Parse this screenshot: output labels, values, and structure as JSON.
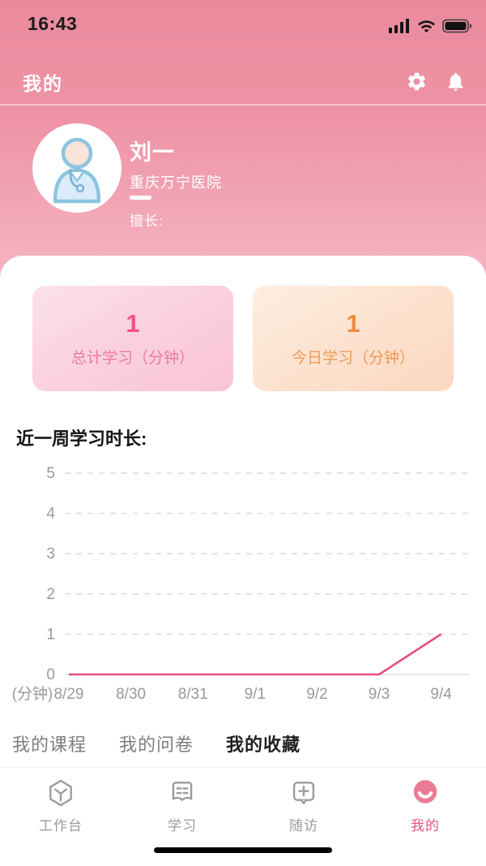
{
  "status_bar": {
    "time": "16:43"
  },
  "header": {
    "title": "我的"
  },
  "profile": {
    "name": "刘一",
    "hospital": "重庆万宁医院",
    "specialty_label": "擅长:"
  },
  "stats": [
    {
      "value": "1",
      "label": "总计学习（分钟）",
      "value_color": "#f0508b"
    },
    {
      "value": "1",
      "label": "今日学习（分钟）",
      "value_color": "#ee8c3d"
    }
  ],
  "chart_data": {
    "type": "line",
    "title": "近一周学习时长:",
    "unit_label": "(分钟)",
    "x": [
      "8/29",
      "8/30",
      "8/31",
      "9/1",
      "9/2",
      "9/3",
      "9/4"
    ],
    "values": [
      0,
      0,
      0,
      0,
      0,
      0,
      1
    ],
    "ylim": [
      0,
      5
    ],
    "yticks": [
      0,
      1,
      2,
      3,
      4,
      5
    ],
    "grid": "dashed horizontal",
    "line_color": "#e2507f",
    "axis_label_color": "#999999"
  },
  "links": [
    {
      "label": "我的课程"
    },
    {
      "label": "我的问卷"
    },
    {
      "label": "我的收藏"
    }
  ],
  "tab_bar": {
    "items": [
      {
        "label": "工作台",
        "icon": "workbench-icon",
        "active": false
      },
      {
        "label": "学习",
        "icon": "study-icon",
        "active": false
      },
      {
        "label": "随访",
        "icon": "follow-up-icon",
        "active": false
      },
      {
        "label": "我的",
        "icon": "profile-icon",
        "active": true
      }
    ]
  },
  "colors": {
    "header_gradient_top": "#ea8a9d",
    "header_gradient_bottom": "#f5b5c2",
    "active_tab_pink": "#ec7b95",
    "chart_line_pink": "#e2507f"
  }
}
